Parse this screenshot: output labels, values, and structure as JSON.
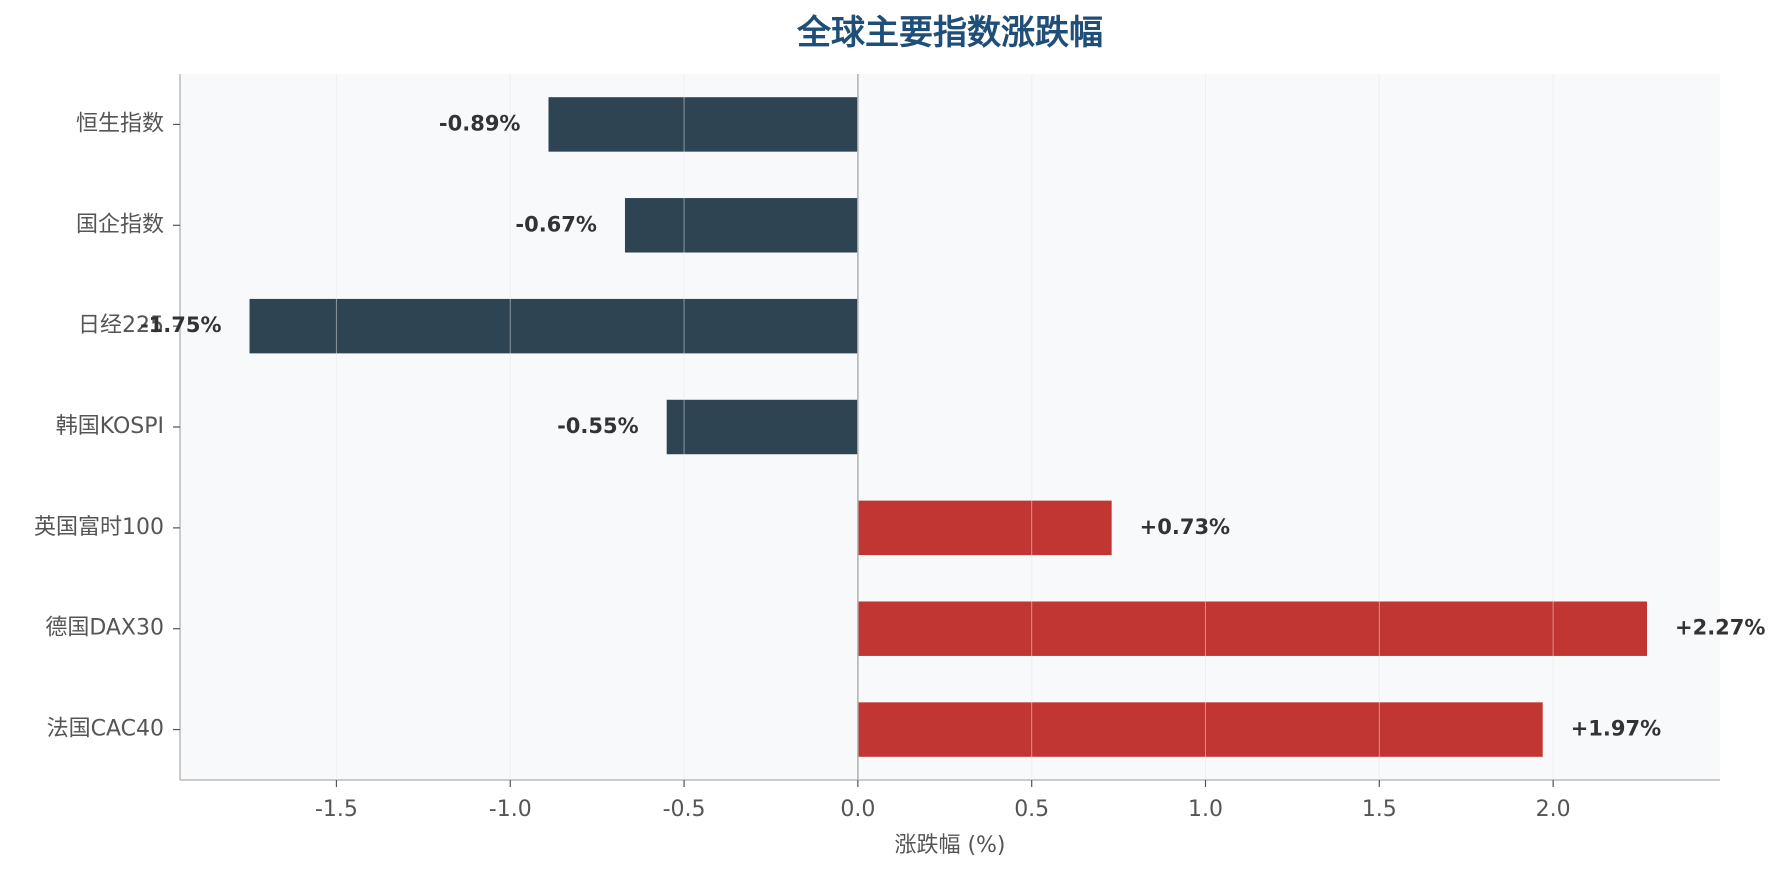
{
  "chart_data": {
    "type": "bar",
    "orientation": "horizontal",
    "title": "全球主要指数涨跌幅",
    "xlabel": "涨跌幅 (%)",
    "ylabel": "",
    "categories": [
      "恒生指数",
      "国企指数",
      "日经225",
      "韩国KOSPI",
      "英国富时100",
      "德国DAX30",
      "法国CAC40"
    ],
    "values": [
      -0.89,
      -0.67,
      -1.75,
      -0.55,
      0.73,
      2.27,
      1.97
    ],
    "value_labels": [
      "-0.89%",
      "-0.67%",
      "-1.75%",
      "-0.55%",
      "+0.73%",
      "+2.27%",
      "+1.97%"
    ],
    "xlim": [
      -1.95,
      2.48
    ],
    "xticks": [
      -1.5,
      -1.0,
      -0.5,
      0.0,
      0.5,
      1.0,
      1.5,
      2.0
    ],
    "xtick_labels": [
      "-1.5",
      "-1.0",
      "-0.5",
      "0.0",
      "0.5",
      "1.0",
      "1.5",
      "2.0"
    ],
    "grid": "vertical",
    "colors": {
      "negative": "#2e4453",
      "positive": "#c13532",
      "plot_background": "#f8f9fb",
      "title": "#1f4e79"
    }
  }
}
